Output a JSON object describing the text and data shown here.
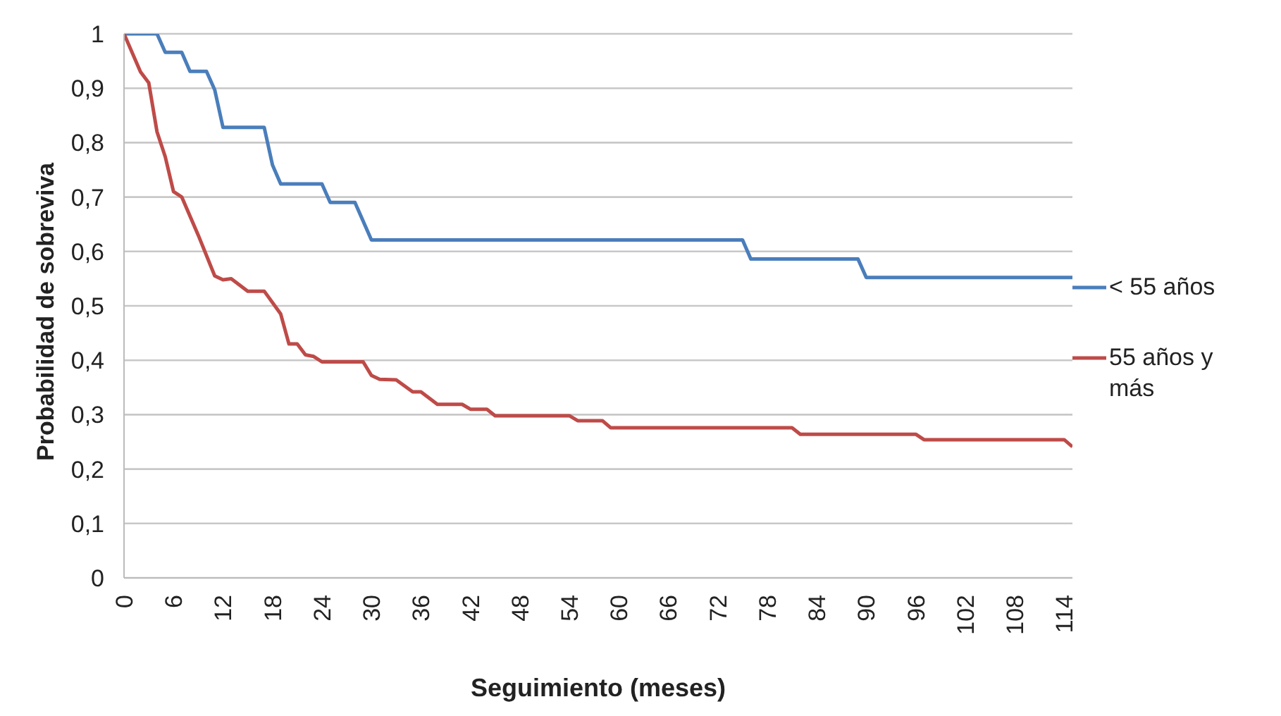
{
  "chart_data": {
    "type": "line",
    "xlabel": "Seguimiento (meses)",
    "ylabel": "Probabilidad  de sobreviva",
    "xlim": [
      0,
      115
    ],
    "xticks": [
      0,
      6,
      12,
      18,
      24,
      30,
      36,
      42,
      48,
      54,
      60,
      66,
      72,
      78,
      84,
      90,
      96,
      102,
      108,
      114
    ],
    "ylim": [
      0,
      1
    ],
    "yticks": [
      0,
      {
        "value": 0.1,
        "label": "0,1"
      },
      {
        "value": 0.2,
        "label": "0,2"
      },
      {
        "value": 0.3,
        "label": "0,3"
      },
      {
        "value": 0.4,
        "label": "0,4"
      },
      {
        "value": 0.5,
        "label": "0,5"
      },
      {
        "value": 0.6,
        "label": "0,6"
      },
      {
        "value": 0.7,
        "label": "0,7"
      },
      {
        "value": 0.8,
        "label": "0,8"
      },
      {
        "value": 0.9,
        "label": "0,9"
      },
      1
    ],
    "grid": "y",
    "legend": "right",
    "marker": "none",
    "line_style": "solid",
    "series": [
      {
        "name": "< 55 años",
        "color": "#4a7ebb",
        "x": [
          0,
          4,
          5,
          7,
          8,
          10,
          11,
          12,
          17,
          18,
          19,
          24,
          25,
          28,
          30,
          75,
          76,
          89,
          90,
          115
        ],
        "values": [
          1,
          1,
          0.966,
          0.966,
          0.931,
          0.931,
          0.897,
          0.828,
          0.828,
          0.759,
          0.724,
          0.724,
          0.69,
          0.69,
          0.621,
          0.621,
          0.586,
          0.586,
          0.552,
          0.552
        ]
      },
      {
        "name": "55 años y más",
        "color": "#be4b48",
        "x": [
          0,
          2,
          3,
          4,
          5,
          6,
          7,
          9,
          11,
          12,
          13,
          15,
          17,
          19,
          20,
          21,
          22,
          23,
          24,
          29,
          30,
          31,
          33,
          35,
          36,
          38,
          41,
          42,
          44,
          45,
          54,
          55,
          58,
          59,
          81,
          82,
          96,
          97,
          114,
          115
        ],
        "values": [
          1,
          0.93,
          0.91,
          0.82,
          0.774,
          0.71,
          0.7,
          0.63,
          0.555,
          0.548,
          0.55,
          0.527,
          0.527,
          0.485,
          0.43,
          0.43,
          0.41,
          0.407,
          0.397,
          0.397,
          0.372,
          0.365,
          0.364,
          0.342,
          0.342,
          0.319,
          0.319,
          0.31,
          0.31,
          0.298,
          0.298,
          0.289,
          0.289,
          0.276,
          0.276,
          0.264,
          0.264,
          0.254,
          0.254,
          0.241
        ]
      }
    ]
  }
}
